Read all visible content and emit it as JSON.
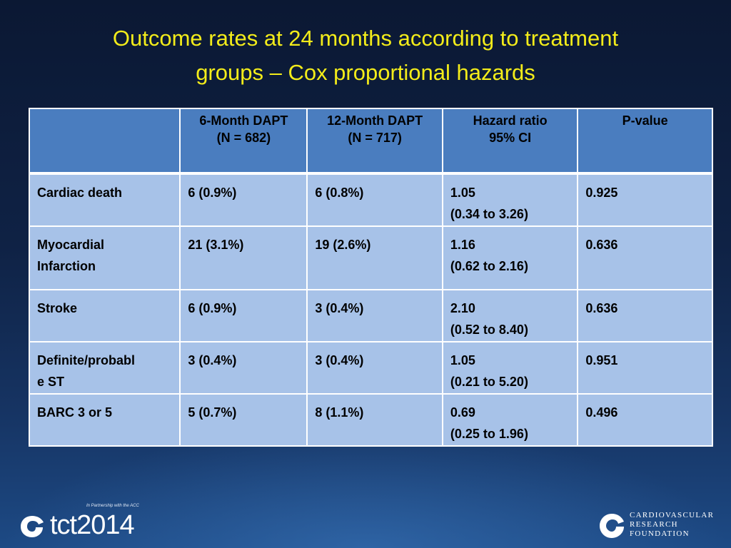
{
  "slide": {
    "title_line1": "Outcome rates at 24 months according to treatment",
    "title_line2": "groups – Cox proportional hazards",
    "title_color": "#f3ec1a"
  },
  "table": {
    "headers": [
      {
        "line1": "",
        "line2": ""
      },
      {
        "line1": "6-Month DAPT",
        "line2": "(N = 682)"
      },
      {
        "line1": "12-Month DAPT",
        "line2": "(N = 717)"
      },
      {
        "line1": "Hazard ratio",
        "line2": "95% CI"
      },
      {
        "line1": "P-value",
        "line2": ""
      }
    ],
    "rows": [
      {
        "outcome": "Cardiac death",
        "six_month": "6 (0.9%)",
        "twelve_month": "6 (0.8%)",
        "hr": "1.05",
        "ci": "(0.34 to 3.26)",
        "p": "0.925"
      },
      {
        "outcome_line1": "Myocardial",
        "outcome_line2": "Infarction",
        "six_month": "21 (3.1%)",
        "twelve_month": "19 (2.6%)",
        "hr": "1.16",
        "ci": "(0.62 to 2.16)",
        "p": "0.636"
      },
      {
        "outcome": "Stroke",
        "six_month": "6 (0.9%)",
        "twelve_month": "3 (0.4%)",
        "hr": "2.10",
        "ci": "(0.52 to 8.40)",
        "p": "0.636"
      },
      {
        "outcome_line1": "Definite/probabl",
        "outcome_line2": "e ST",
        "six_month": "3 (0.4%)",
        "twelve_month": "3 (0.4%)",
        "hr": "1.05",
        "ci": "(0.21 to 5.20)",
        "p": "0.951"
      },
      {
        "outcome": "BARC 3 or 5",
        "six_month": "5 (0.7%)",
        "twelve_month": "8 (1.1%)",
        "hr": "0.69",
        "ci": "(0.25 to 1.96)",
        "p": "0.496"
      }
    ],
    "header_color": "#4a7dbf",
    "cell_color": "#a7c2e8"
  },
  "footer": {
    "tct_logo_text": "tct2014",
    "tct_partner_text": "In Partnership with the ACC",
    "crf_line1": "CARDIOVASCULAR",
    "crf_line2": "RESEARCH",
    "crf_line3": "FOUNDATION",
    "tct_icon": "swirl-logo-icon",
    "crf_icon": "crf-swirl-icon"
  }
}
